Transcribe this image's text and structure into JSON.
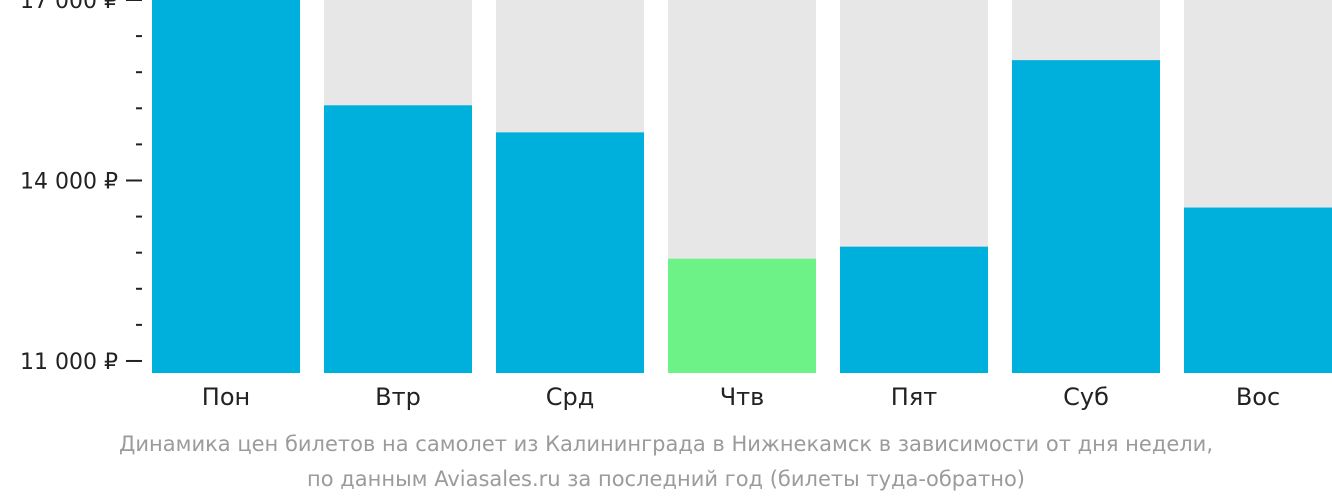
{
  "chart_data": {
    "type": "bar",
    "categories": [
      "Пон",
      "Втр",
      "Срд",
      "Чтв",
      "Пят",
      "Суб",
      "Вос"
    ],
    "values": [
      17000,
      15250,
      14800,
      12700,
      12900,
      16000,
      13550
    ],
    "highlight_index": 3,
    "ylim": [
      10800,
      17000
    ],
    "y_tick_labels": [
      {
        "value": 17000,
        "label": "17 000 ₽"
      },
      {
        "value": 14000,
        "label": "14 000 ₽"
      },
      {
        "value": 11000,
        "label": "11 000 ₽"
      }
    ],
    "y_minor_ticks": [
      16400,
      15800,
      15200,
      14600,
      13400,
      12800,
      12200,
      11600
    ],
    "grid": false,
    "legend": "none",
    "colors": {
      "bar": "#00b0dc",
      "highlight": "#6cf286",
      "track": "#e7e7e7",
      "axis": "#222222",
      "caption": "#9b9b9b"
    }
  },
  "caption": {
    "line1": "Динамика цен билетов на самолет из Калининграда в Нижнекамск в зависимости от дня недели,",
    "line2": "по данным Aviasales.ru за последний год (билеты туда-обратно)"
  }
}
